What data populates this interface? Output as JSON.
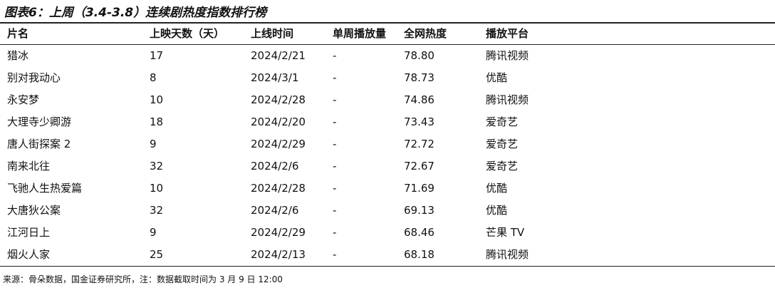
{
  "header": {
    "title": "图表6：上周（3.4-3.8）连续剧热度指数排行榜"
  },
  "table": {
    "columns": [
      "片名",
      "上映天数（天）",
      "上线时间",
      "单周播放量",
      "全网热度",
      "播放平台"
    ],
    "rows": [
      [
        "猎冰",
        "17",
        "2024/2/21",
        "-",
        "78.80",
        "腾讯视频"
      ],
      [
        "别对我动心",
        "8",
        "2024/3/1",
        "-",
        "78.73",
        "优酷"
      ],
      [
        "永安梦",
        "10",
        "2024/2/28",
        "-",
        "74.86",
        "腾讯视频"
      ],
      [
        "大理寺少卿游",
        "18",
        "2024/2/20",
        "-",
        "73.43",
        "爱奇艺"
      ],
      [
        "唐人街探案 2",
        "9",
        "2024/2/29",
        "-",
        "72.72",
        "爱奇艺"
      ],
      [
        "南来北往",
        "32",
        "2024/2/6",
        "-",
        "72.67",
        "爱奇艺"
      ],
      [
        "飞驰人生热爱篇",
        "10",
        "2024/2/28",
        "-",
        "71.69",
        "优酷"
      ],
      [
        "大唐狄公案",
        "32",
        "2024/2/6",
        "-",
        "69.13",
        "优酷"
      ],
      [
        "江河日上",
        "9",
        "2024/2/29",
        "-",
        "68.46",
        "芒果 TV"
      ],
      [
        "烟火人家",
        "25",
        "2024/2/13",
        "-",
        "68.18",
        "腾讯视频"
      ]
    ]
  },
  "footer": {
    "source": "来源：骨朵数据，国金证券研究所，注：数据截取时间为 3 月 9 日 12:00"
  }
}
